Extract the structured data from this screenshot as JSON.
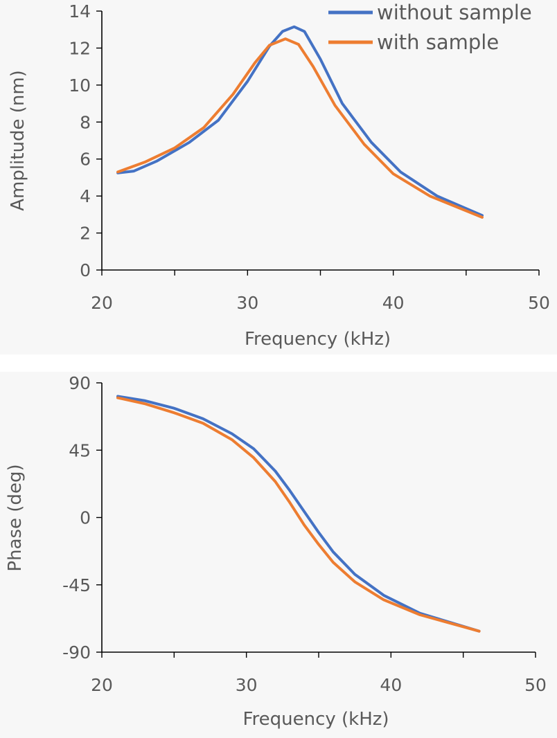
{
  "colors": {
    "without": "#4472C4",
    "with": "#ED7D31",
    "axis": "#000000",
    "text": "#595959"
  },
  "chart_data": [
    {
      "type": "line",
      "xlabel": "Frequency (kHz)",
      "ylabel": "Amplitude (nm)",
      "xlim": [
        20,
        50
      ],
      "ylim": [
        0,
        14
      ],
      "xticks": [
        "20",
        "30",
        "40",
        "50"
      ],
      "yticks": [
        "0",
        "2",
        "4",
        "6",
        "8",
        "10",
        "12",
        "14"
      ],
      "grid": false,
      "legend": "top-right",
      "series": [
        {
          "name": "without sample",
          "color": "#4472C4",
          "x": [
            21.1,
            22.2,
            23.8,
            26,
            28,
            30,
            31.5,
            32.4,
            33.2,
            33.9,
            35,
            36.5,
            38.5,
            40.5,
            43,
            46.1
          ],
          "y": [
            5.25,
            5.35,
            5.9,
            6.9,
            8.1,
            10.2,
            12.1,
            12.9,
            13.15,
            12.9,
            11.4,
            9.0,
            6.9,
            5.3,
            4.0,
            2.95
          ]
        },
        {
          "name": "with sample",
          "color": "#ED7D31",
          "x": [
            21.1,
            23,
            25,
            27,
            29,
            30.5,
            31.5,
            32.6,
            33.5,
            34.5,
            36,
            38,
            40,
            42.5,
            46.1
          ],
          "y": [
            5.3,
            5.85,
            6.6,
            7.7,
            9.5,
            11.2,
            12.15,
            12.5,
            12.2,
            11.0,
            8.9,
            6.8,
            5.2,
            4.0,
            2.85
          ]
        }
      ]
    },
    {
      "type": "line",
      "xlabel": "Frequency (kHz)",
      "ylabel": "Phase (deg)",
      "xlim": [
        20,
        50
      ],
      "ylim": [
        -90,
        90
      ],
      "xticks": [
        "20",
        "30",
        "40",
        "50"
      ],
      "yticks": [
        "90",
        "45",
        "0",
        "-45",
        "-90"
      ],
      "grid": false,
      "series": [
        {
          "name": "without sample",
          "color": "#4472C4",
          "x": [
            21.1,
            23,
            25,
            27,
            29,
            30.5,
            32,
            33,
            34,
            35,
            36,
            37.5,
            39.5,
            42,
            46.1
          ],
          "y": [
            81,
            78,
            73,
            66,
            56,
            46,
            31,
            18,
            4,
            -10,
            -23,
            -38,
            -52,
            -64,
            -76
          ]
        },
        {
          "name": "with sample",
          "color": "#ED7D31",
          "x": [
            21.1,
            23,
            25,
            27,
            29,
            30.5,
            32,
            33,
            34,
            35,
            36,
            37.5,
            39.5,
            42,
            46.1
          ],
          "y": [
            80,
            76,
            70,
            63,
            52,
            40,
            24,
            10,
            -5,
            -18,
            -30,
            -43,
            -55,
            -65,
            -76
          ]
        }
      ]
    }
  ]
}
